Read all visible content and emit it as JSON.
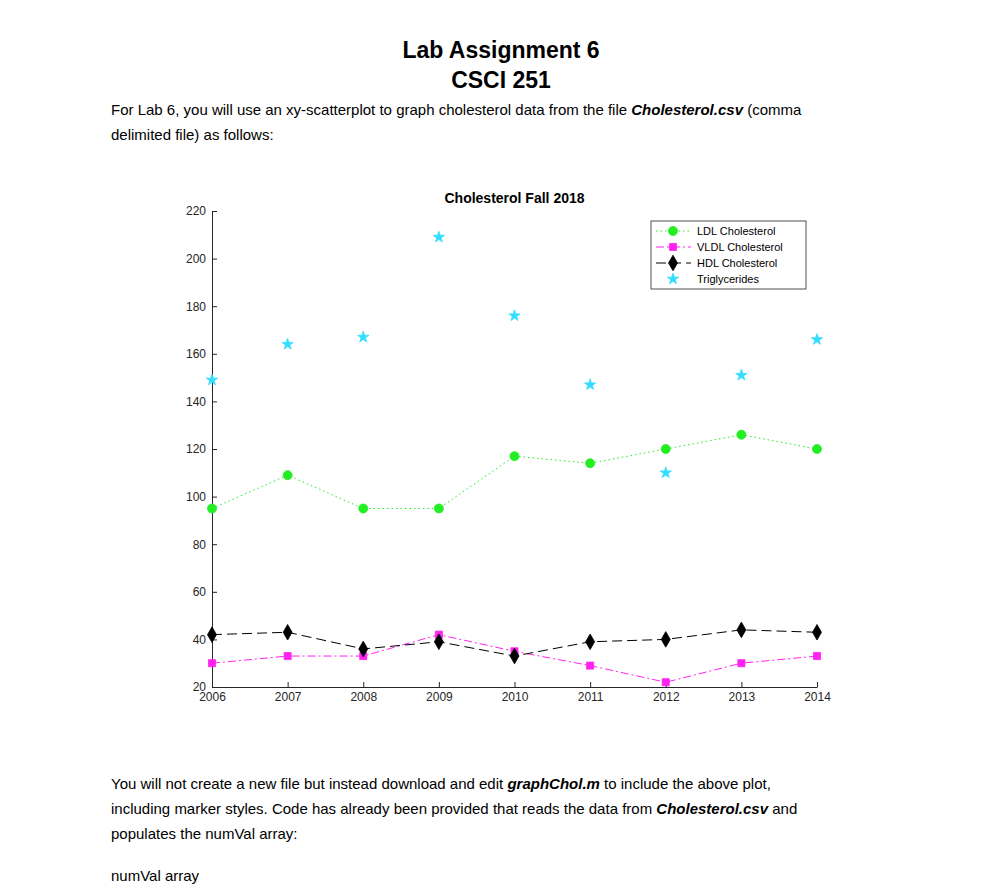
{
  "header": {
    "title": "Lab Assignment 6",
    "subtitle": "CSCI 251"
  },
  "intro": {
    "lines": [
      {
        "runs": [
          {
            "text": "For Lab 6, you will use an xy-scatterplot to graph cholesterol data from the file "
          },
          {
            "text": "Cholesterol.csv",
            "style": "bold-italic"
          },
          {
            "text": " (comma"
          }
        ]
      },
      {
        "runs": [
          {
            "text": "delimited file) as follows:"
          }
        ]
      }
    ]
  },
  "chart_data": {
    "type": "line",
    "title": "Cholesterol Fall 2018",
    "x": [
      2006,
      2007,
      2008,
      2009,
      2010,
      2011,
      2012,
      2013,
      2014
    ],
    "xlim": [
      2006,
      2014
    ],
    "xticks": [
      2006,
      2007,
      2008,
      2009,
      2010,
      2011,
      2012,
      2013,
      2014
    ],
    "ylim": [
      20,
      220
    ],
    "yticks": [
      20,
      40,
      60,
      80,
      100,
      120,
      140,
      160,
      180,
      200,
      220
    ],
    "legend": "upper right",
    "series": [
      {
        "name": "LDL Cholesterol",
        "color": "#22ee22",
        "marker": "circle",
        "line_style": "dotted",
        "values": [
          95,
          109,
          95,
          95,
          117,
          114,
          120,
          126,
          120
        ]
      },
      {
        "name": "VLDL Cholesterol",
        "color": "#ff22ee",
        "marker": "square",
        "line_style": "dash-dot",
        "values": [
          30,
          33,
          33,
          42,
          35,
          29,
          22,
          30,
          33
        ]
      },
      {
        "name": "HDL Cholesterol",
        "color": "#000000",
        "marker": "diamond",
        "line_style": "dashed",
        "values": [
          42,
          43,
          36,
          39,
          33,
          39,
          40,
          44,
          43
        ]
      },
      {
        "name": "Triglycerides",
        "color": "#33ddff",
        "marker": "star",
        "line_style": "none",
        "values": [
          149,
          164,
          167,
          209,
          176,
          147,
          110,
          151,
          166
        ]
      }
    ]
  },
  "outro": {
    "lines": [
      {
        "runs": [
          {
            "text": "You will not create a new file but instead download and edit "
          },
          {
            "text": "graphChol.m",
            "style": "bold-italic"
          },
          {
            "text": " to include the above plot,"
          }
        ]
      },
      {
        "runs": [
          {
            "text": "including marker styles. Code has already been provided that reads the data from "
          },
          {
            "text": "Cholesterol.csv",
            "style": "bold-italic"
          },
          {
            "text": " and"
          }
        ]
      },
      {
        "runs": [
          {
            "text": "populates the numVal array:"
          }
        ]
      }
    ]
  },
  "footer": {
    "text": "numVal array"
  }
}
